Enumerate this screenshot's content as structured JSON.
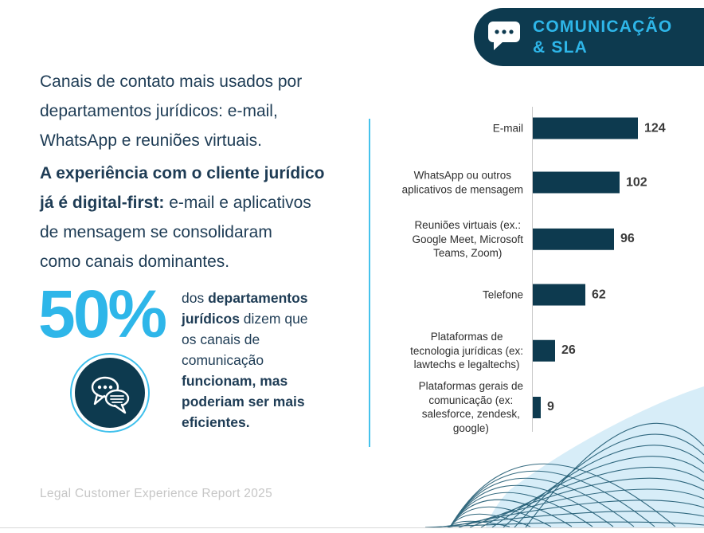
{
  "badge": {
    "title_line1": "COMUNICAÇÃO",
    "title_line2": "& SLA",
    "icon": "chat-bubble-icon"
  },
  "intro": {
    "p1_segments": [
      {
        "bold": false,
        "text": "Canais de contato mais usados por\ndepartamentos jurídicos: e-mail,\nWhatsApp e reuniões virtuais."
      }
    ],
    "p2_segments": [
      {
        "bold": true,
        "text": "A experiência com o cliente jurídico\njá é digital-first:"
      },
      {
        "bold": false,
        "text": " e-mail e aplicativos\nde mensagem se consolidaram\ncomo canais dominantes."
      }
    ]
  },
  "stat": {
    "value": "50%",
    "icon": "chat-bubbles-icon",
    "desc_segments": [
      {
        "bold": false,
        "text": "dos "
      },
      {
        "bold": true,
        "text": "departamentos\njurídicos"
      },
      {
        "bold": false,
        "text": " dizem que\nos canais de\ncomunicação\n"
      },
      {
        "bold": true,
        "text": "funcionam, mas\npoderiam ser mais\neficientes."
      }
    ]
  },
  "chart_data": {
    "type": "bar",
    "orientation": "horizontal",
    "categories": [
      "E-mail",
      "WhatsApp ou outros\naplicativos de mensagem",
      "Reuniões virtuais (ex.:\nGoogle Meet, Microsoft\nTeams, Zoom)",
      "Telefone",
      "Plataformas de\ntecnologia jurídicas (ex:\nlawtechs e legaltechs)",
      "Plataformas gerais de\ncomunicação (ex:\nsalesforce, zendesk,\ngoogle)"
    ],
    "values": [
      124,
      102,
      96,
      62,
      26,
      9
    ],
    "xlim": [
      0,
      130
    ],
    "value_labels_shown": true,
    "grid": false,
    "bar_color": "#0d3a4f"
  },
  "footer": {
    "text": "Legal Customer Experience Report 2025"
  },
  "colors": {
    "dark_navy": "#0d3a4f",
    "accent_cyan": "#2eb6e9",
    "separator_cyan": "#45c2ec",
    "light_blue_blob": "#d7edf8",
    "arc_stroke": "#1f5a72",
    "footer_gray": "#c6c6c6"
  }
}
